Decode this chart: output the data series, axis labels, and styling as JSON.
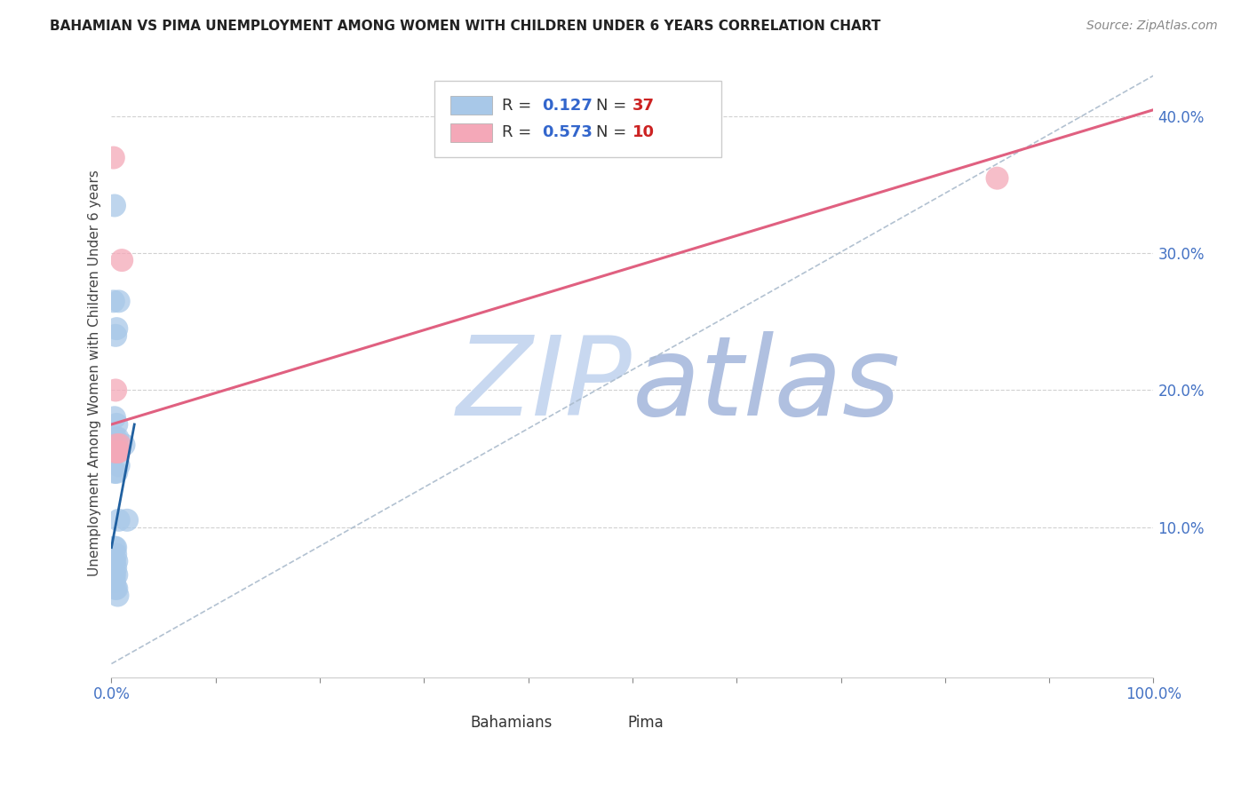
{
  "title": "BAHAMIAN VS PIMA UNEMPLOYMENT AMONG WOMEN WITH CHILDREN UNDER 6 YEARS CORRELATION CHART",
  "source": "Source: ZipAtlas.com",
  "ylabel": "Unemployment Among Women with Children Under 6 years",
  "watermark": "ZIPatlas",
  "xlim": [
    0.0,
    1.0
  ],
  "ylim": [
    -0.01,
    0.435
  ],
  "yticks": [
    0.1,
    0.2,
    0.3,
    0.4
  ],
  "ytick_labels": [
    "10.0%",
    "20.0%",
    "30.0%",
    "40.0%"
  ],
  "xticks": [
    0.0,
    0.1,
    0.2,
    0.3,
    0.4,
    0.5,
    0.6,
    0.7,
    0.8,
    0.9,
    1.0
  ],
  "xtick_labels": [
    "0.0%",
    "",
    "",
    "",
    "",
    "",
    "",
    "",
    "",
    "",
    "100.0%"
  ],
  "legend_r1": "R =  0.127",
  "legend_n1": "N = 37",
  "legend_r2": "R =  0.573",
  "legend_n2": "N = 10",
  "blue_color": "#a8c8e8",
  "pink_color": "#f4a8b8",
  "blue_line_color": "#2060a0",
  "gray_dash_color": "#aabbcc",
  "pink_line_color": "#e06080",
  "title_color": "#222222",
  "axis_label_color": "#444444",
  "tick_color": "#4472c4",
  "watermark_zip_color": "#c8d8f0",
  "watermark_atlas_color": "#b0c0e0",
  "blue_scatter_x": [
    0.003,
    0.005,
    0.002,
    0.007,
    0.004,
    0.003,
    0.005,
    0.006,
    0.003,
    0.004,
    0.005,
    0.003,
    0.004,
    0.005,
    0.006,
    0.007,
    0.002,
    0.003,
    0.004,
    0.003,
    0.004,
    0.005,
    0.002,
    0.003,
    0.004,
    0.005,
    0.002,
    0.003,
    0.004,
    0.005,
    0.006,
    0.015,
    0.012,
    0.007,
    0.003,
    0.004,
    0.002
  ],
  "blue_scatter_y": [
    0.335,
    0.245,
    0.265,
    0.265,
    0.24,
    0.18,
    0.175,
    0.165,
    0.16,
    0.155,
    0.155,
    0.14,
    0.155,
    0.14,
    0.155,
    0.145,
    0.155,
    0.155,
    0.165,
    0.085,
    0.085,
    0.065,
    0.075,
    0.065,
    0.07,
    0.075,
    0.065,
    0.06,
    0.055,
    0.055,
    0.05,
    0.105,
    0.16,
    0.105,
    0.075,
    0.08,
    0.065
  ],
  "pink_scatter_x": [
    0.002,
    0.01,
    0.004,
    0.005,
    0.006,
    0.007,
    0.008,
    0.85,
    0.003,
    0.005
  ],
  "pink_scatter_y": [
    0.37,
    0.295,
    0.2,
    0.155,
    0.155,
    0.155,
    0.16,
    0.355,
    0.155,
    0.16
  ],
  "blue_line_x0": 0.0,
  "blue_line_x1": 0.022,
  "blue_line_y0": 0.085,
  "blue_line_y1": 0.175,
  "gray_line_x0": 0.0,
  "gray_line_x1": 1.0,
  "gray_line_y0": 0.0,
  "gray_line_y1": 0.43,
  "pink_line_x0": 0.0,
  "pink_line_x1": 1.0,
  "pink_line_y0": 0.175,
  "pink_line_y1": 0.405
}
